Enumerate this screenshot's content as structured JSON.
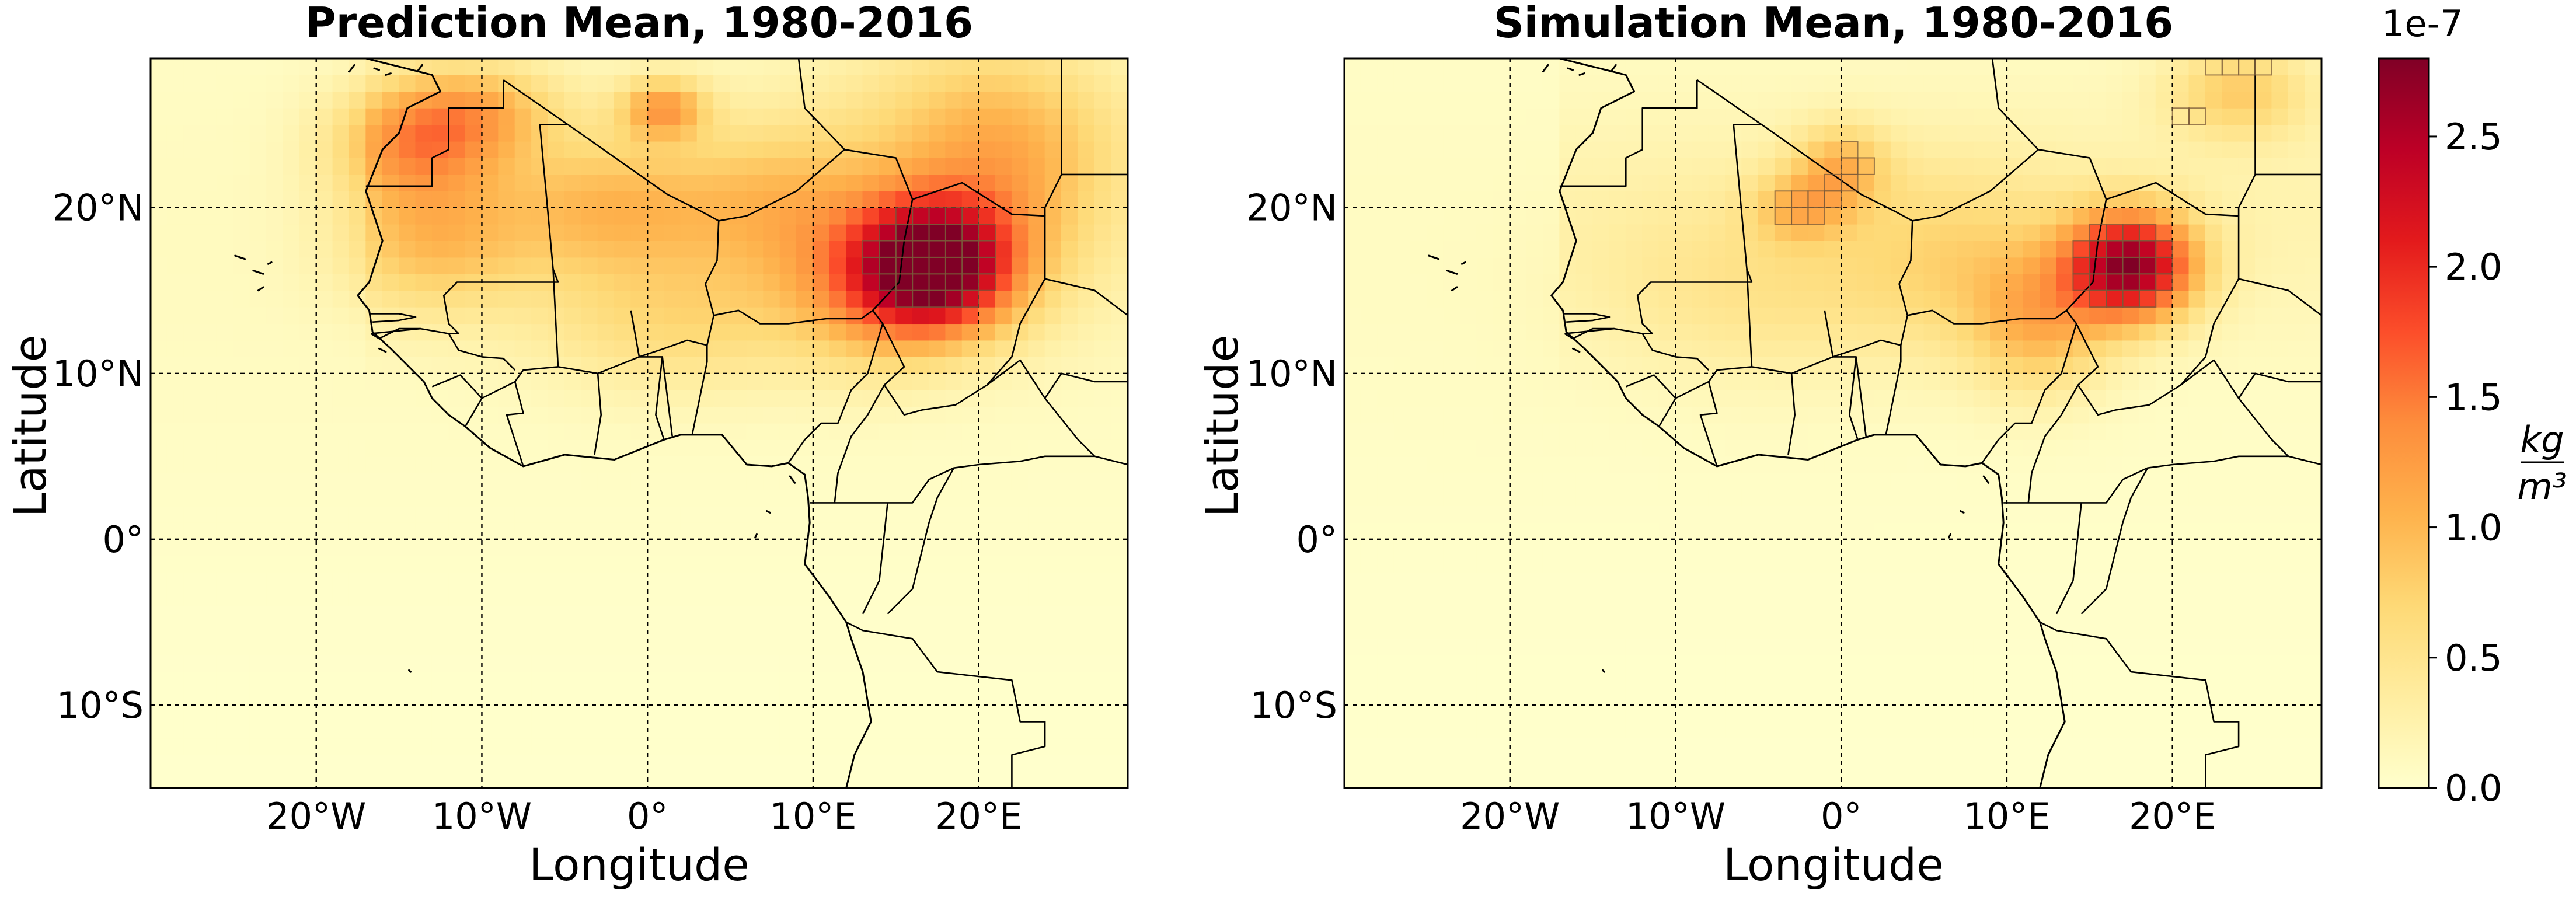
{
  "colors": {
    "cmap": [
      "#ffffcc",
      "#ffeda0",
      "#fed976",
      "#feb24c",
      "#fd8d3c",
      "#fc4e2a",
      "#e31a1c",
      "#bd0026",
      "#800026"
    ],
    "grid": "#000000",
    "coast": "#000000"
  },
  "colorbar": {
    "exponent_label": "1e-7",
    "unit_numerator": "kg",
    "unit_denominator": "m³",
    "min": 0.0,
    "max": 2.8,
    "ticks": [
      "0.0",
      "0.5",
      "1.0",
      "1.5",
      "2.0",
      "2.5"
    ]
  },
  "axes": {
    "xlabel": "Longitude",
    "ylabel": "Latitude",
    "lon_range": [
      -30,
      29
    ],
    "lat_range": [
      -15,
      29
    ],
    "x_ticks": [
      {
        "lon": -20,
        "label": "20°W"
      },
      {
        "lon": -10,
        "label": "10°W"
      },
      {
        "lon": 0,
        "label": "0°"
      },
      {
        "lon": 10,
        "label": "10°E"
      },
      {
        "lon": 20,
        "label": "20°E"
      }
    ],
    "y_ticks": [
      {
        "lat": 20,
        "label": "20°N"
      },
      {
        "lat": 10,
        "label": "10°N"
      },
      {
        "lat": 0,
        "label": "0°"
      },
      {
        "lat": -10,
        "label": "10°S"
      }
    ]
  },
  "panels": [
    {
      "title": "Prediction Mean, 1980-2016",
      "hotspots": [
        {
          "lon": 17.5,
          "lat": 16.5,
          "amp": 2.55,
          "sx": 3.2,
          "sy": 2.8
        },
        {
          "lon": 13.5,
          "lat": 15.5,
          "amp": 0.9,
          "sx": 3.5,
          "sy": 3.5
        },
        {
          "lon": -14,
          "lat": 24,
          "amp": 1.05,
          "sx": 3.5,
          "sy": 2.5
        },
        {
          "lon": -10,
          "lat": 26,
          "amp": 0.7,
          "sx": 3.5,
          "sy": 2.0
        },
        {
          "lon": 1,
          "lat": 26,
          "amp": 1.05,
          "sx": 1.8,
          "sy": 1.3
        },
        {
          "lon": -2,
          "lat": 20,
          "amp": 0.75,
          "sx": 5.0,
          "sy": 3.0
        },
        {
          "lon": 8,
          "lat": 20,
          "amp": 0.6,
          "sx": 4.0,
          "sy": 3.5
        },
        {
          "lon": -13,
          "lat": 18,
          "amp": 0.7,
          "sx": 4.0,
          "sy": 3.0
        },
        {
          "lon": 20,
          "lat": 25,
          "amp": 0.6,
          "sx": 6.0,
          "sy": 4.0
        },
        {
          "lon": 2,
          "lat": 13,
          "amp": 0.5,
          "sx": 6.0,
          "sy": 3.0
        },
        {
          "lon": 22,
          "lat": 20,
          "amp": 0.5,
          "sx": 4.0,
          "sy": 5.0
        }
      ],
      "background": 0.1
    },
    {
      "title": "Simulation Mean, 1980-2016",
      "hotspots": [
        {
          "lon": 17.5,
          "lat": 16.5,
          "amp": 2.5,
          "sx": 2.7,
          "sy": 2.3
        },
        {
          "lon": 12,
          "lat": 13,
          "amp": 0.8,
          "sx": 3.0,
          "sy": 3.0
        },
        {
          "lon": 0,
          "lat": 22.5,
          "amp": 0.75,
          "sx": 2.0,
          "sy": 1.8
        },
        {
          "lon": -2.5,
          "lat": 20,
          "amp": 0.65,
          "sx": 2.0,
          "sy": 1.5
        },
        {
          "lon": 24,
          "lat": 27,
          "amp": 0.7,
          "sx": 3.0,
          "sy": 2.0
        },
        {
          "lon": 7,
          "lat": 17,
          "amp": 0.45,
          "sx": 5.0,
          "sy": 4.0
        },
        {
          "lon": -5,
          "lat": 15,
          "amp": 0.35,
          "sx": 7.0,
          "sy": 4.0
        }
      ],
      "background": 0.08
    }
  ]
}
